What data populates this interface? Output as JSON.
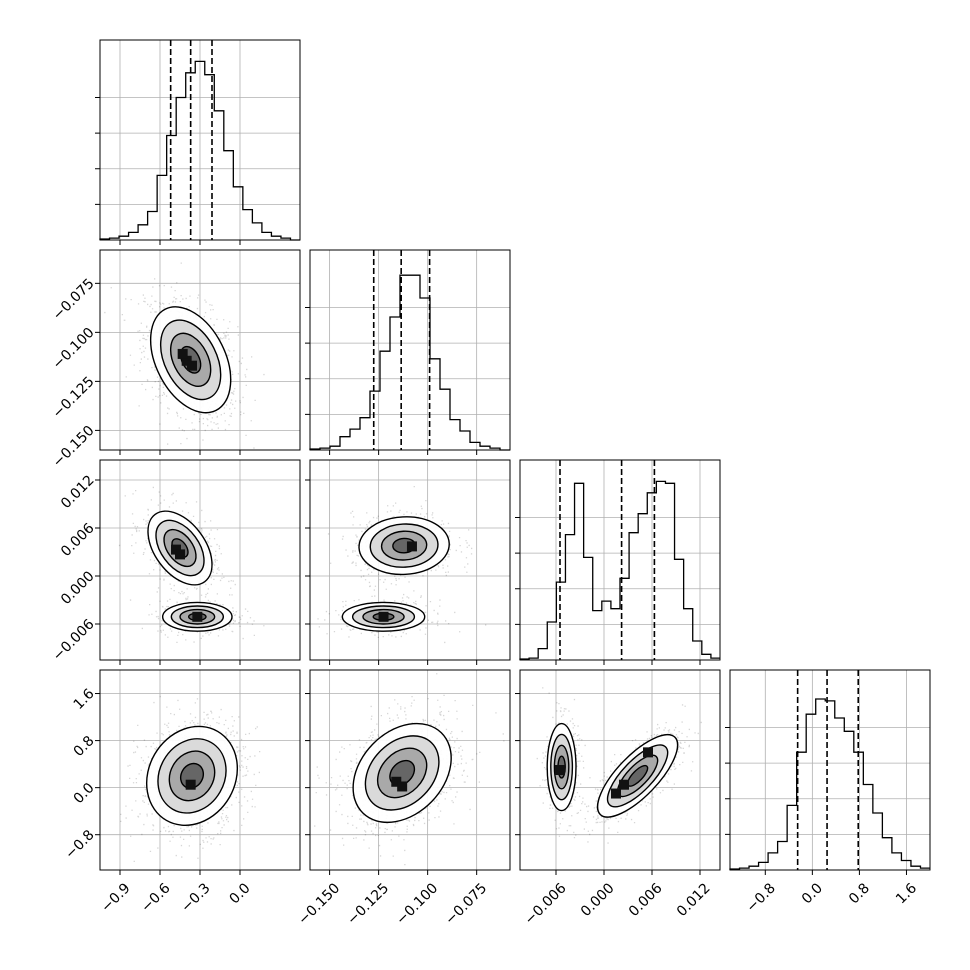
{
  "chart_data": {
    "type": "corner",
    "grid": true,
    "variables": [
      {
        "range": [
          -1.05,
          0.45
        ],
        "ticks": [
          -0.9,
          -0.6,
          -0.3,
          0.0
        ],
        "tick_labels": [
          "−0.9",
          "−0.6",
          "−0.3",
          "0.0"
        ],
        "quantiles": [
          -0.52,
          -0.37,
          -0.21
        ],
        "hist_counts": [
          0.5,
          1,
          2,
          4,
          8,
          15,
          34,
          55,
          75,
          88,
          94,
          87,
          68,
          47,
          28,
          16,
          9,
          4,
          2,
          1,
          0
        ],
        "hist_peak": 100
      },
      {
        "range": [
          -0.16,
          -0.058
        ],
        "ticks": [
          -0.15,
          -0.125,
          -0.1,
          -0.075
        ],
        "tick_labels": [
          "−0.150",
          "−0.125",
          "−0.100",
          "−0.075"
        ],
        "quantiles": [
          -0.1275,
          -0.1135,
          -0.099
        ],
        "hist_counts": [
          0.5,
          1,
          2,
          7,
          11,
          17,
          31,
          52,
          70,
          92,
          92,
          80,
          48,
          32,
          16,
          10,
          4,
          2,
          1,
          0
        ],
        "hist_peak": 100
      },
      {
        "range": [
          -0.0105,
          0.0145
        ],
        "ticks": [
          -0.006,
          0.0,
          0.006,
          0.012
        ],
        "tick_labels": [
          "−0.006",
          "0.000",
          "0.006",
          "0.012"
        ],
        "quantiles": [
          -0.0055,
          0.0022,
          0.0063
        ],
        "hist_counts": [
          0.5,
          1,
          6,
          20,
          41,
          66,
          93,
          54,
          26,
          31,
          27,
          43,
          67,
          77,
          88,
          94,
          93,
          53,
          27,
          10,
          3,
          1
        ],
        "hist_peak": 100
      },
      {
        "range": [
          -1.4,
          2.0
        ],
        "ticks": [
          -0.8,
          0.0,
          0.8,
          1.6
        ],
        "tick_labels": [
          "−0.8",
          "0.0",
          "0.8",
          "1.6"
        ],
        "quantiles": [
          -0.25,
          0.25,
          0.78
        ],
        "hist_counts": [
          0.5,
          1,
          2,
          4,
          9,
          15,
          34,
          62,
          82,
          90,
          89,
          80,
          73,
          62,
          45,
          30,
          17,
          9,
          5,
          2,
          1
        ],
        "hist_peak": 100
      }
    ],
    "pairs": [
      {
        "row": 1,
        "col": 0,
        "blobs": [
          {
            "mean": [
              -0.37,
              -0.114
            ],
            "sd": [
              0.15,
              0.0135
            ],
            "rho": -0.38,
            "weight": 1.0
          }
        ],
        "hot_cells": [
          [
            -0.4,
            -0.1145
          ],
          [
            -0.36,
            -0.117
          ],
          [
            -0.43,
            -0.111
          ]
        ]
      },
      {
        "row": 2,
        "col": 0,
        "blobs": [
          {
            "mean": [
              -0.45,
              0.0035
            ],
            "sd": [
              0.12,
              0.0023
            ],
            "rho": -0.45,
            "weight": 0.6
          },
          {
            "mean": [
              -0.32,
              -0.0051
            ],
            "sd": [
              0.13,
              0.0009
            ],
            "rho": 0.0,
            "weight": 0.4
          }
        ],
        "hot_cells": [
          [
            -0.48,
            0.0033
          ],
          [
            -0.45,
            0.0027
          ],
          [
            -0.32,
            -0.0051
          ]
        ]
      },
      {
        "row": 2,
        "col": 1,
        "blobs": [
          {
            "mean": [
              -0.112,
              0.0038
            ],
            "sd": [
              0.0115,
              0.0018
            ],
            "rho": 0.05,
            "weight": 0.6
          },
          {
            "mean": [
              -0.1225,
              -0.0051
            ],
            "sd": [
              0.0105,
              0.0009
            ],
            "rho": 0.0,
            "weight": 0.4
          }
        ],
        "hot_cells": [
          [
            -0.108,
            0.0037
          ],
          [
            -0.1225,
            -0.0051
          ]
        ]
      },
      {
        "row": 3,
        "col": 0,
        "blobs": [
          {
            "mean": [
              -0.36,
              0.2
            ],
            "sd": [
              0.17,
              0.42
            ],
            "rho": 0.15,
            "weight": 1.0
          }
        ],
        "hot_cells": [
          [
            -0.37,
            0.05
          ]
        ]
      },
      {
        "row": 3,
        "col": 1,
        "blobs": [
          {
            "mean": [
              -0.113,
              0.25
            ],
            "sd": [
              0.0125,
              0.42
            ],
            "rho": 0.3,
            "weight": 1.0
          }
        ],
        "hot_cells": [
          [
            -0.116,
            0.1
          ],
          [
            -0.113,
            0.02
          ]
        ]
      },
      {
        "row": 3,
        "col": 2,
        "blobs": [
          {
            "mean": [
              -0.0053,
              0.35
            ],
            "sd": [
              0.0009,
              0.37
            ],
            "rho": 0.0,
            "weight": 0.4
          },
          {
            "mean": [
              0.0042,
              0.2
            ],
            "sd": [
              0.0025,
              0.35
            ],
            "rho": 0.75,
            "weight": 0.6
          }
        ],
        "hot_cells": [
          [
            0.0055,
            0.6
          ],
          [
            0.0015,
            -0.1
          ],
          [
            0.0025,
            0.05
          ],
          [
            -0.0055,
            0.3
          ]
        ]
      }
    ]
  }
}
